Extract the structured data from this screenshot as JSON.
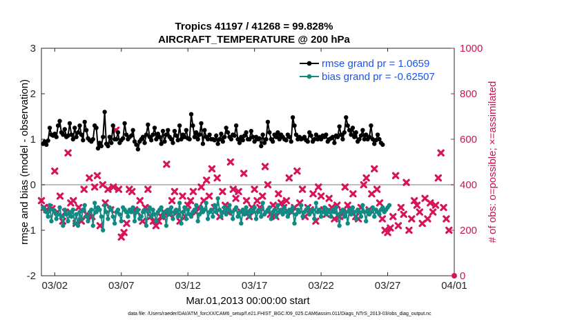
{
  "chart_data": {
    "type": "line",
    "title_line1": "Tropics 41197 / 41268 = 99.828%",
    "title_line2": "AIRCRAFT_TEMPERATURE @ 200 hPa",
    "xlabel": "Mar.01,2013 00:00:00 start",
    "ylabel_left": "rmse and bias (model - observation)",
    "ylabel_right": "# of obs: o=possible; ×=assimilated",
    "footnote": "data file: /Users/raeder/DAI/ATM_forcXX/CAM6_setup/f.e21.FHIST_BGC.f09_025.CAM6assim.011/Diags_NTrS_2013-03/obs_diag_output.nc",
    "xlim_days": [
      0,
      31
    ],
    "x_ticks": [
      {
        "day": 1,
        "label": "03/02"
      },
      {
        "day": 6,
        "label": "03/07"
      },
      {
        "day": 11,
        "label": "03/12"
      },
      {
        "day": 16,
        "label": "03/17"
      },
      {
        "day": 21,
        "label": "03/22"
      },
      {
        "day": 26,
        "label": "03/27"
      },
      {
        "day": 31,
        "label": "04/01"
      }
    ],
    "ylim_left": [
      -2,
      3
    ],
    "y_ticks_left": [
      "-2",
      "-1",
      "0",
      "1",
      "2",
      "3"
    ],
    "ylim_right": [
      0,
      1000
    ],
    "y_ticks_right": [
      "0",
      "200",
      "400",
      "600",
      "800",
      "1000"
    ],
    "legend": [
      "rmse grand pr = 1.0659",
      "bias grand pr = -0.62507"
    ],
    "colors": {
      "rmse": "#000000",
      "bias": "#118a84",
      "obs": "#d6145a",
      "zero_line": "#bdbdbd",
      "legend_text": "#1a55e6",
      "right_axis": "#cc1155"
    },
    "x_step_days": 0.125,
    "rmse": [
      0.9,
      0.95,
      0.88,
      0.97,
      1.25,
      1.1,
      1.08,
      1.12,
      1.05,
      1.3,
      1.4,
      1.15,
      1.1,
      1.22,
      1.05,
      1.08,
      1.35,
      1.1,
      1.0,
      1.25,
      1.05,
      1.15,
      1.3,
      1.1,
      0.98,
      1.38,
      1.2,
      1.02,
      0.98,
      0.95,
      1.0,
      1.3,
      1.25,
      0.8,
      0.92,
      0.85,
      1.05,
      1.6,
      0.9,
      0.85,
      1.05,
      0.92,
      1.3,
      1.0,
      1.0,
      1.15,
      0.92,
      0.98,
      1.02,
      1.35,
      1.1,
      1.0,
      1.05,
      1.08,
      1.2,
      0.95,
      0.88,
      0.78,
      0.95,
      1.0,
      1.05,
      0.92,
      1.1,
      1.32,
      1.05,
      0.98,
      1.1,
      1.25,
      1.0,
      1.12,
      1.05,
      0.9,
      1.18,
      0.95,
      1.1,
      1.2,
      1.05,
      1.0,
      0.92,
      1.18,
      1.08,
      0.98,
      1.3,
      1.0,
      1.1,
      1.05,
      1.2,
      1.02,
      1.0,
      1.55,
      1.3,
      1.05,
      1.15,
      1.0,
      1.1,
      1.35,
      0.9,
      1.2,
      1.05,
      1.0,
      1.1,
      1.0,
      1.0,
      0.98,
      1.08,
      0.9,
      1.0,
      1.12,
      0.95,
      1.05,
      1.25,
      1.15,
      1.05,
      1.0,
      1.1,
      1.08,
      1.3,
      1.0,
      0.92,
      1.05,
      0.98,
      1.08,
      1.15,
      1.0,
      1.0,
      1.18,
      1.05,
      0.95,
      1.05,
      1.0,
      1.02,
      0.85,
      1.1,
      0.92,
      1.0,
      1.38,
      1.15,
      1.0,
      0.95,
      1.1,
      1.05,
      1.15,
      1.0,
      1.1,
      1.05,
      1.0,
      0.98,
      1.1,
      1.05,
      0.95,
      1.48,
      1.3,
      1.1,
      1.0,
      1.05,
      1.0,
      1.02,
      1.05,
      0.98,
      0.95,
      1.15,
      1.08,
      0.95,
      1.0,
      1.1,
      1.0,
      1.05,
      1.0,
      1.08,
      1.05,
      1.1,
      0.95,
      1.0,
      1.02,
      1.05,
      0.92,
      1.08,
      1.05,
      1.28,
      1.1,
      1.0,
      1.15,
      1.48,
      1.3,
      1.2,
      1.1,
      1.25,
      1.05,
      1.15,
      0.95,
      1.0,
      1.08,
      1.2,
      1.0,
      1.1,
      1.0,
      1.05,
      1.3,
      1.0,
      0.9,
      0.98,
      1.1,
      1.0,
      0.92,
      0.88
    ],
    "bias": [
      -0.5,
      -0.55,
      -0.6,
      -0.7,
      -0.45,
      -0.8,
      -0.55,
      -0.6,
      -0.75,
      -0.65,
      -0.5,
      -0.7,
      -0.9,
      -0.55,
      -0.65,
      -0.8,
      -0.6,
      -0.7,
      -0.55,
      -0.85,
      -0.65,
      -0.9,
      -0.6,
      -0.75,
      -0.55,
      -0.45,
      -0.7,
      -0.8,
      -0.6,
      -0.55,
      -0.9,
      -0.4,
      -0.6,
      -0.5,
      -0.55,
      -0.7,
      -1.0,
      -0.45,
      -0.6,
      -0.75,
      -0.5,
      -0.55,
      -0.7,
      -0.85,
      -0.6,
      -0.55,
      -0.65,
      -0.8,
      -0.5,
      -0.55,
      -0.6,
      -0.7,
      -0.55,
      -0.6,
      -0.5,
      -0.8,
      -0.6,
      -0.55,
      -0.75,
      -0.7,
      -0.6,
      -0.55,
      -0.9,
      -0.6,
      -0.5,
      -0.7,
      -0.55,
      -0.65,
      -0.8,
      -0.6,
      -0.55,
      -0.5,
      -0.7,
      -0.6,
      -0.9,
      -0.55,
      -0.65,
      -0.5,
      -0.75,
      -0.6,
      -0.55,
      -0.7,
      -0.4,
      -0.85,
      -0.6,
      -0.5,
      -0.75,
      -0.55,
      -0.65,
      -0.7,
      -0.6,
      -0.55,
      -0.45,
      -0.8,
      -0.65,
      -0.5,
      -0.6,
      -0.55,
      -0.4,
      -0.75,
      -0.6,
      -0.55,
      -0.7,
      -0.45,
      -0.6,
      -0.3,
      -0.55,
      -0.7,
      -0.6,
      -0.5,
      -0.65,
      -0.55,
      -0.45,
      -0.6,
      -0.75,
      -0.55,
      -0.5,
      -0.7,
      -0.6,
      -0.85,
      -0.55,
      -0.65,
      -0.5,
      -0.6,
      -0.7,
      -0.55,
      -0.6,
      -0.5,
      -0.75,
      -0.6,
      -0.55,
      -0.7,
      -0.4,
      -0.65,
      -0.6,
      -0.55,
      -0.5,
      -0.75,
      -0.6,
      -0.55,
      -0.7,
      -0.45,
      -0.6,
      -0.55,
      -0.65,
      -0.5,
      -0.6,
      -0.7,
      -0.55,
      -0.6,
      -0.5,
      -0.85,
      -0.65,
      -0.55,
      -0.6,
      -0.45,
      -0.7,
      -0.6,
      -0.55,
      -0.5,
      -0.65,
      -0.6,
      -0.55,
      -0.75,
      -0.4,
      -0.6,
      -0.55,
      -0.7,
      -0.6,
      -0.5,
      -0.65,
      -0.55,
      -0.6,
      -0.7,
      -0.55,
      -0.6,
      -0.5,
      -0.65,
      -0.9,
      -0.6,
      -0.55,
      -0.7,
      -0.6,
      -0.85,
      -0.55,
      -0.65,
      -0.5,
      -0.6,
      -0.75,
      -0.55,
      -0.6,
      -0.7,
      -0.45,
      -0.6,
      -0.8,
      -0.55,
      -0.65,
      -0.6,
      -0.5,
      -0.7,
      -0.55,
      -0.6,
      -0.65,
      -0.55,
      -0.5,
      -0.6,
      -0.55,
      -0.5,
      -0.45
    ],
    "obs_assimilated": [
      [
        0.0,
        330
      ],
      [
        0.2,
        300
      ],
      [
        0.4,
        290
      ],
      [
        0.6,
        300
      ],
      [
        0.8,
        295
      ],
      [
        1.0,
        460
      ],
      [
        1.2,
        280
      ],
      [
        1.4,
        350
      ],
      [
        1.6,
        240
      ],
      [
        1.8,
        280
      ],
      [
        2.0,
        540
      ],
      [
        2.2,
        320
      ],
      [
        2.4,
        330
      ],
      [
        2.6,
        230
      ],
      [
        2.8,
        300
      ],
      [
        3.0,
        240
      ],
      [
        3.2,
        380
      ],
      [
        3.4,
        270
      ],
      [
        3.6,
        430
      ],
      [
        3.8,
        260
      ],
      [
        4.0,
        390
      ],
      [
        4.2,
        440
      ],
      [
        4.4,
        220
      ],
      [
        4.6,
        400
      ],
      [
        4.8,
        320
      ],
      [
        5.0,
        380
      ],
      [
        5.2,
        290
      ],
      [
        5.4,
        390
      ],
      [
        5.6,
        640
      ],
      [
        5.8,
        380
      ],
      [
        6.0,
        170
      ],
      [
        6.2,
        190
      ],
      [
        6.4,
        230
      ],
      [
        6.6,
        380
      ],
      [
        6.8,
        370
      ],
      [
        7.0,
        290
      ],
      [
        7.2,
        280
      ],
      [
        7.4,
        330
      ],
      [
        7.6,
        240
      ],
      [
        7.8,
        300
      ],
      [
        8.0,
        380
      ],
      [
        8.2,
        260
      ],
      [
        8.4,
        240
      ],
      [
        8.6,
        220
      ],
      [
        8.8,
        240
      ],
      [
        9.0,
        260
      ],
      [
        9.2,
        280
      ],
      [
        9.4,
        490
      ],
      [
        9.6,
        270
      ],
      [
        9.8,
        330
      ],
      [
        10.0,
        370
      ],
      [
        10.2,
        280
      ],
      [
        10.4,
        240
      ],
      [
        10.6,
        350
      ],
      [
        10.8,
        260
      ],
      [
        11.0,
        310
      ],
      [
        11.2,
        330
      ],
      [
        11.4,
        370
      ],
      [
        11.6,
        280
      ],
      [
        11.8,
        300
      ],
      [
        12.0,
        390
      ],
      [
        12.2,
        330
      ],
      [
        12.4,
        420
      ],
      [
        12.6,
        350
      ],
      [
        12.8,
        470
      ],
      [
        13.0,
        300
      ],
      [
        13.2,
        430
      ],
      [
        13.4,
        260
      ],
      [
        13.6,
        370
      ],
      [
        13.8,
        310
      ],
      [
        14.0,
        280
      ],
      [
        14.2,
        500
      ],
      [
        14.4,
        380
      ],
      [
        14.6,
        340
      ],
      [
        14.8,
        370
      ],
      [
        15.0,
        280
      ],
      [
        15.2,
        450
      ],
      [
        15.4,
        330
      ],
      [
        15.6,
        260
      ],
      [
        15.8,
        300
      ],
      [
        16.0,
        380
      ],
      [
        16.2,
        330
      ],
      [
        16.4,
        300
      ],
      [
        16.6,
        350
      ],
      [
        16.8,
        480
      ],
      [
        17.0,
        400
      ],
      [
        17.2,
        270
      ],
      [
        17.4,
        310
      ],
      [
        17.6,
        260
      ],
      [
        17.8,
        360
      ],
      [
        18.0,
        320
      ],
      [
        18.2,
        300
      ],
      [
        18.4,
        330
      ],
      [
        18.6,
        430
      ],
      [
        18.8,
        280
      ],
      [
        19.0,
        300
      ],
      [
        19.2,
        460
      ],
      [
        19.4,
        320
      ],
      [
        19.6,
        380
      ],
      [
        19.8,
        260
      ],
      [
        20.0,
        300
      ],
      [
        20.2,
        290
      ],
      [
        20.4,
        360
      ],
      [
        20.6,
        240
      ],
      [
        20.8,
        390
      ],
      [
        21.0,
        350
      ],
      [
        21.2,
        290
      ],
      [
        21.4,
        270
      ],
      [
        21.6,
        340
      ],
      [
        21.8,
        300
      ],
      [
        22.0,
        250
      ],
      [
        22.2,
        310
      ],
      [
        22.4,
        260
      ],
      [
        22.6,
        280
      ],
      [
        22.8,
        390
      ],
      [
        23.0,
        310
      ],
      [
        23.2,
        290
      ],
      [
        23.4,
        360
      ],
      [
        23.6,
        260
      ],
      [
        23.8,
        250
      ],
      [
        24.0,
        300
      ],
      [
        24.2,
        400
      ],
      [
        24.4,
        430
      ],
      [
        24.6,
        290
      ],
      [
        24.8,
        360
      ],
      [
        25.0,
        470
      ],
      [
        25.2,
        380
      ],
      [
        25.4,
        320
      ],
      [
        25.6,
        250
      ],
      [
        25.8,
        200
      ],
      [
        26.0,
        190
      ],
      [
        26.2,
        210
      ],
      [
        26.4,
        260
      ],
      [
        26.6,
        440
      ],
      [
        26.8,
        220
      ],
      [
        27.0,
        300
      ],
      [
        27.2,
        270
      ],
      [
        27.4,
        410
      ],
      [
        27.6,
        200
      ],
      [
        27.8,
        250
      ],
      [
        28.0,
        330
      ],
      [
        28.2,
        310
      ],
      [
        28.4,
        280
      ],
      [
        28.6,
        230
      ],
      [
        28.8,
        340
      ],
      [
        29.0,
        250
      ],
      [
        29.2,
        320
      ],
      [
        29.4,
        280
      ],
      [
        29.6,
        310
      ],
      [
        29.8,
        430
      ],
      [
        30.0,
        540
      ],
      [
        30.2,
        300
      ],
      [
        30.4,
        250
      ],
      [
        30.6,
        200
      ]
    ]
  }
}
